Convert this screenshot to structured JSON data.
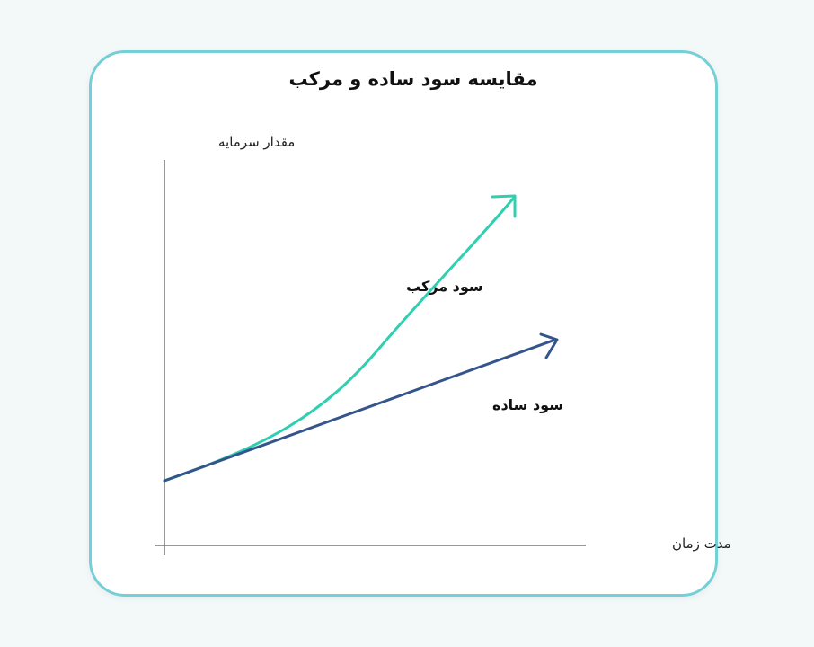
{
  "title": "مقایسه سود ساده و مرکب",
  "y_axis_label": "مقدار سرمایه",
  "x_axis_label": "مدت زمان",
  "series": [
    {
      "name": "سود مرکب",
      "color": "#2fcfb0",
      "shape": "exponential curve"
    },
    {
      "name": "سود ساده",
      "color": "#34558b",
      "shape": "straight line"
    }
  ],
  "colors": {
    "axis": "#777777",
    "card_border": "#74cfd6",
    "background": "#f3f8f9"
  }
}
